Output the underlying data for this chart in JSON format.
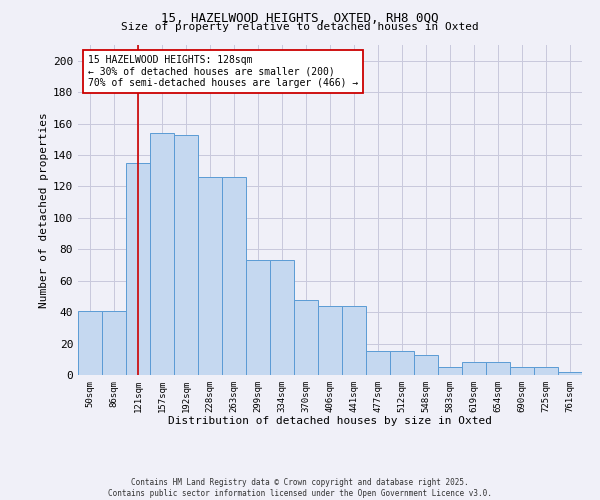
{
  "title_line1": "15, HAZELWOOD HEIGHTS, OXTED, RH8 0QQ",
  "title_line2": "Size of property relative to detached houses in Oxted",
  "xlabel": "Distribution of detached houses by size in Oxted",
  "ylabel": "Number of detached properties",
  "categories": [
    "50sqm",
    "86sqm",
    "121sqm",
    "157sqm",
    "192sqm",
    "228sqm",
    "263sqm",
    "299sqm",
    "334sqm",
    "370sqm",
    "406sqm",
    "441sqm",
    "477sqm",
    "512sqm",
    "548sqm",
    "583sqm",
    "619sqm",
    "654sqm",
    "690sqm",
    "725sqm",
    "761sqm"
  ],
  "values": [
    41,
    41,
    135,
    154,
    153,
    126,
    126,
    73,
    73,
    48,
    44,
    44,
    15,
    15,
    13,
    5,
    8,
    8,
    5,
    5,
    2
  ],
  "bar_color": "#c5d8f0",
  "bar_edge_color": "#5b9bd5",
  "background_color": "#f0f0f8",
  "grid_color": "#c8c8dc",
  "vline_x": 2.0,
  "vline_color": "#cc0000",
  "annotation_text": "15 HAZELWOOD HEIGHTS: 128sqm\n← 30% of detached houses are smaller (200)\n70% of semi-detached houses are larger (466) →",
  "annotation_box_color": "#ffffff",
  "annotation_edge_color": "#cc0000",
  "ylim": [
    0,
    210
  ],
  "yticks": [
    0,
    20,
    40,
    60,
    80,
    100,
    120,
    140,
    160,
    180,
    200
  ],
  "footer_line1": "Contains HM Land Registry data © Crown copyright and database right 2025.",
  "footer_line2": "Contains public sector information licensed under the Open Government Licence v3.0."
}
